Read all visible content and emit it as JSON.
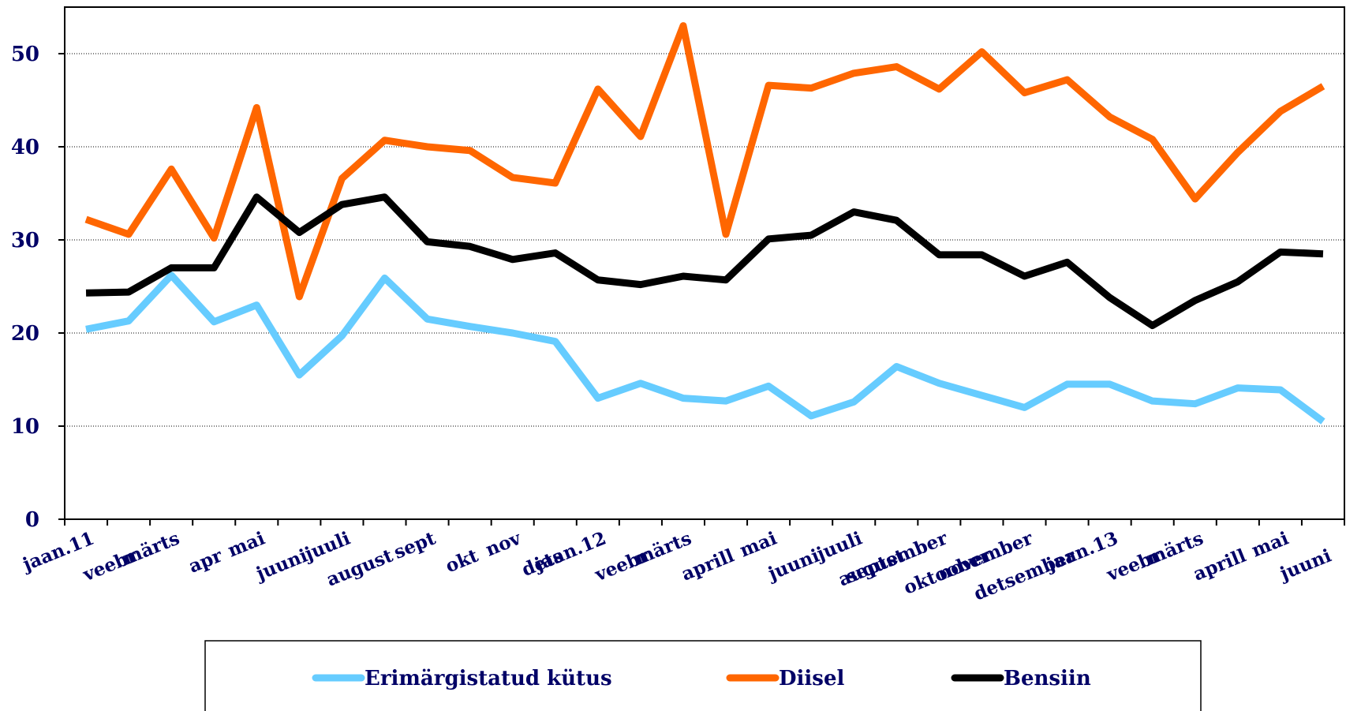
{
  "chart_data": {
    "type": "line",
    "categories": [
      "jaan.11",
      "veebr",
      "märts",
      "apr",
      "mai",
      "juuni",
      "juuli",
      "august",
      "sept",
      "okt",
      "nov",
      "dets",
      "jaan.12",
      "veebr",
      "märts",
      "aprill",
      "mai",
      "juuni",
      "juuli",
      "august",
      "september",
      "oktoober",
      "november",
      "detsember",
      "jaan.13",
      "veebr",
      "märts",
      "aprill",
      "mai",
      "juuni"
    ],
    "series": [
      {
        "name": "Erimärgistatud kütus",
        "color": "#66ccff",
        "values": [
          20.4,
          21.3,
          26.2,
          21.2,
          23.0,
          15.5,
          19.7,
          25.9,
          21.5,
          20.7,
          20.0,
          19.1,
          13.0,
          14.6,
          13.0,
          12.7,
          14.3,
          11.1,
          12.6,
          16.4,
          14.6,
          13.3,
          12.0,
          14.5,
          14.5,
          12.7,
          12.4,
          14.1,
          13.9,
          10.5
        ]
      },
      {
        "name": "Diisel",
        "color": "#ff6600",
        "values": [
          32.2,
          30.6,
          37.6,
          30.2,
          44.2,
          23.9,
          36.6,
          40.7,
          40.0,
          39.6,
          36.7,
          36.1,
          46.2,
          41.1,
          53.0,
          30.6,
          46.6,
          46.3,
          47.9,
          48.6,
          46.2,
          50.2,
          45.8,
          47.2,
          43.2,
          40.8,
          34.4,
          39.4,
          43.8,
          46.5
        ]
      },
      {
        "name": "Bensiin",
        "color": "#000000",
        "values": [
          24.3,
          24.4,
          27.0,
          27.0,
          34.6,
          30.8,
          33.8,
          34.6,
          29.8,
          29.3,
          27.9,
          28.6,
          25.7,
          25.2,
          26.1,
          25.7,
          30.1,
          30.5,
          33.0,
          32.1,
          28.4,
          28.4,
          26.1,
          27.6,
          23.8,
          20.8,
          23.5,
          25.5,
          28.7,
          28.5
        ]
      }
    ],
    "ylim": [
      0,
      55
    ],
    "yticks": [
      0,
      10,
      20,
      30,
      40,
      50
    ],
    "grid": true,
    "legend": "bottom"
  }
}
